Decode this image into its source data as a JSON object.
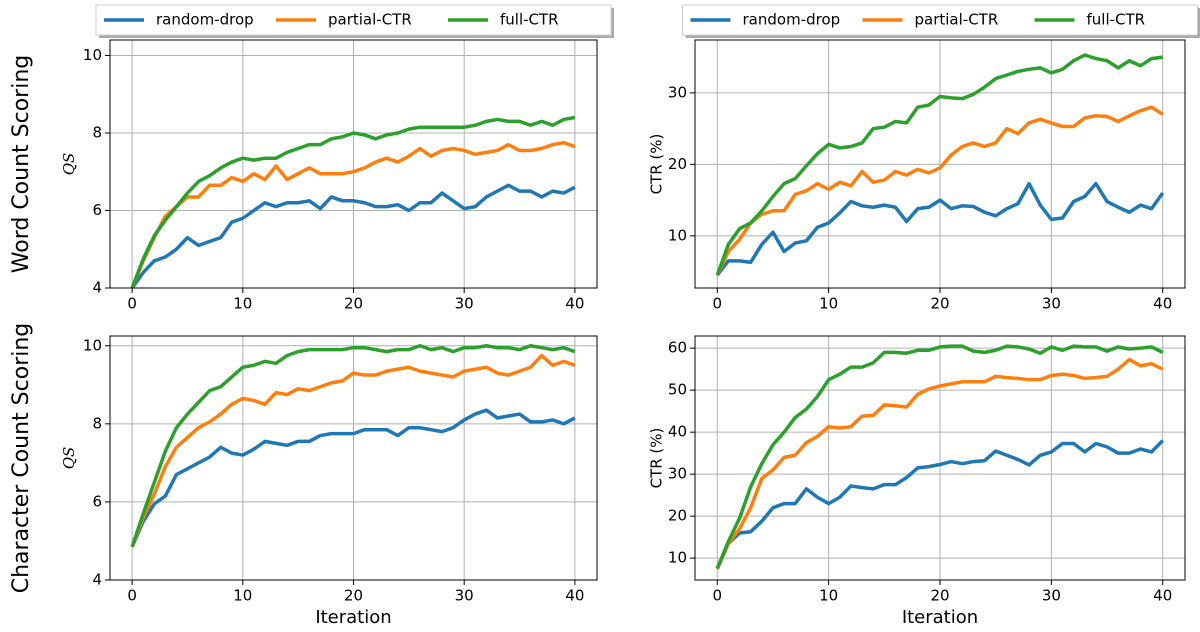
{
  "chart_data": [
    {
      "type": "line",
      "row_label": "Word Count Scoring",
      "ylabel": "QS",
      "legend": "top",
      "grid": true,
      "x": [
        0,
        1,
        2,
        3,
        4,
        5,
        6,
        7,
        8,
        9,
        10,
        11,
        12,
        13,
        14,
        15,
        16,
        17,
        18,
        19,
        20,
        21,
        22,
        23,
        24,
        25,
        26,
        27,
        28,
        29,
        30,
        31,
        32,
        33,
        34,
        35,
        36,
        37,
        38,
        39,
        40
      ],
      "xlim": [
        -2,
        42
      ],
      "xticks": [
        0,
        10,
        20,
        30,
        40
      ],
      "ylim": [
        4,
        10.4
      ],
      "yticks": [
        4,
        6,
        8,
        10
      ],
      "series": [
        {
          "name": "random-drop",
          "color": "#1f77b4",
          "values": [
            4.0,
            4.4,
            4.7,
            4.8,
            5.0,
            5.3,
            5.1,
            5.2,
            5.3,
            5.7,
            5.8,
            6.0,
            6.2,
            6.1,
            6.2,
            6.2,
            6.25,
            6.05,
            6.35,
            6.25,
            6.25,
            6.2,
            6.1,
            6.1,
            6.15,
            6.0,
            6.2,
            6.2,
            6.45,
            6.25,
            6.05,
            6.1,
            6.35,
            6.5,
            6.65,
            6.5,
            6.5,
            6.35,
            6.5,
            6.45,
            6.6
          ]
        },
        {
          "name": "partial-CTR",
          "color": "#ff7f0e",
          "values": [
            4.0,
            4.7,
            5.3,
            5.85,
            6.1,
            6.35,
            6.35,
            6.65,
            6.65,
            6.85,
            6.75,
            6.95,
            6.8,
            7.15,
            6.8,
            6.95,
            7.1,
            6.95,
            6.95,
            6.95,
            7.0,
            7.1,
            7.25,
            7.35,
            7.25,
            7.4,
            7.6,
            7.4,
            7.55,
            7.6,
            7.55,
            7.45,
            7.5,
            7.55,
            7.7,
            7.55,
            7.55,
            7.6,
            7.7,
            7.75,
            7.65
          ]
        },
        {
          "name": "full-CTR",
          "color": "#2ca02c",
          "values": [
            4.0,
            4.75,
            5.35,
            5.75,
            6.1,
            6.45,
            6.75,
            6.9,
            7.1,
            7.25,
            7.35,
            7.3,
            7.35,
            7.35,
            7.5,
            7.6,
            7.7,
            7.7,
            7.85,
            7.9,
            8.0,
            7.95,
            7.85,
            7.95,
            8.0,
            8.1,
            8.15,
            8.15,
            8.15,
            8.15,
            8.15,
            8.2,
            8.3,
            8.35,
            8.3,
            8.3,
            8.2,
            8.3,
            8.2,
            8.35,
            8.4
          ]
        }
      ]
    },
    {
      "type": "line",
      "ylabel": "CTR (%)",
      "legend": "top",
      "grid": true,
      "x": [
        0,
        1,
        2,
        3,
        4,
        5,
        6,
        7,
        8,
        9,
        10,
        11,
        12,
        13,
        14,
        15,
        16,
        17,
        18,
        19,
        20,
        21,
        22,
        23,
        24,
        25,
        26,
        27,
        28,
        29,
        30,
        31,
        32,
        33,
        34,
        35,
        36,
        37,
        38,
        39,
        40
      ],
      "xlim": [
        -2,
        42
      ],
      "xticks": [
        0,
        10,
        20,
        30,
        40
      ],
      "ylim": [
        2.7,
        37.4
      ],
      "yticks": [
        10,
        20,
        30
      ],
      "series": [
        {
          "name": "random-drop",
          "color": "#1f77b4",
          "values": [
            4.5,
            6.5,
            6.5,
            6.3,
            8.8,
            10.5,
            7.8,
            9.0,
            9.3,
            11.2,
            11.8,
            13.2,
            14.8,
            14.2,
            14.0,
            14.3,
            14.0,
            12.0,
            13.8,
            14.0,
            15.0,
            13.8,
            14.2,
            14.1,
            13.3,
            12.8,
            13.8,
            14.5,
            17.3,
            14.3,
            12.3,
            12.5,
            14.8,
            15.5,
            17.3,
            14.8,
            14.0,
            13.3,
            14.3,
            13.8,
            16.0
          ]
        },
        {
          "name": "partial-CTR",
          "color": "#ff7f0e",
          "values": [
            4.5,
            7.8,
            9.5,
            11.8,
            13.0,
            13.5,
            13.5,
            15.8,
            16.3,
            17.3,
            16.5,
            17.5,
            17.0,
            19.0,
            17.5,
            17.8,
            19.0,
            18.5,
            19.3,
            18.8,
            19.5,
            21.3,
            22.5,
            23.0,
            22.5,
            23.0,
            25.0,
            24.3,
            25.8,
            26.3,
            25.8,
            25.3,
            25.3,
            26.5,
            26.8,
            26.7,
            26.0,
            26.8,
            27.5,
            28.0,
            27.0
          ]
        },
        {
          "name": "full-CTR",
          "color": "#2ca02c",
          "values": [
            4.5,
            8.8,
            11.0,
            11.8,
            13.5,
            15.5,
            17.3,
            18.0,
            19.8,
            21.5,
            22.8,
            22.3,
            22.5,
            23.0,
            25.0,
            25.2,
            26.0,
            25.8,
            28.0,
            28.3,
            29.5,
            29.3,
            29.2,
            29.8,
            30.8,
            32.0,
            32.5,
            33.0,
            33.3,
            33.5,
            32.8,
            33.3,
            34.5,
            35.3,
            34.8,
            34.5,
            33.5,
            34.5,
            33.8,
            34.8,
            35.0
          ]
        }
      ]
    },
    {
      "type": "line",
      "row_label": "Character Count Scoring",
      "ylabel": "QS",
      "xlabel": "Iteration",
      "grid": true,
      "x": [
        0,
        1,
        2,
        3,
        4,
        5,
        6,
        7,
        8,
        9,
        10,
        11,
        12,
        13,
        14,
        15,
        16,
        17,
        18,
        19,
        20,
        21,
        22,
        23,
        24,
        25,
        26,
        27,
        28,
        29,
        30,
        31,
        32,
        33,
        34,
        35,
        36,
        37,
        38,
        39,
        40
      ],
      "xlim": [
        -2,
        42
      ],
      "xticks": [
        0,
        10,
        20,
        30,
        40
      ],
      "ylim": [
        4,
        10.25
      ],
      "yticks": [
        4,
        6,
        8,
        10
      ],
      "series": [
        {
          "name": "random-drop",
          "color": "#1f77b4",
          "values": [
            4.85,
            5.5,
            5.95,
            6.15,
            6.7,
            6.85,
            7.0,
            7.15,
            7.4,
            7.25,
            7.2,
            7.35,
            7.55,
            7.5,
            7.45,
            7.55,
            7.55,
            7.7,
            7.75,
            7.75,
            7.75,
            7.85,
            7.85,
            7.85,
            7.7,
            7.9,
            7.9,
            7.85,
            7.8,
            7.9,
            8.1,
            8.25,
            8.35,
            8.15,
            8.2,
            8.25,
            8.05,
            8.05,
            8.1,
            8.0,
            8.15
          ]
        },
        {
          "name": "partial-CTR",
          "color": "#ff7f0e",
          "values": [
            4.85,
            5.6,
            6.2,
            6.9,
            7.4,
            7.65,
            7.9,
            8.05,
            8.25,
            8.5,
            8.65,
            8.6,
            8.5,
            8.8,
            8.75,
            8.9,
            8.85,
            8.95,
            9.05,
            9.1,
            9.3,
            9.25,
            9.25,
            9.35,
            9.4,
            9.45,
            9.35,
            9.3,
            9.25,
            9.2,
            9.35,
            9.4,
            9.45,
            9.3,
            9.25,
            9.35,
            9.45,
            9.75,
            9.5,
            9.6,
            9.5
          ]
        },
        {
          "name": "full-CTR",
          "color": "#2ca02c",
          "values": [
            4.85,
            5.7,
            6.5,
            7.3,
            7.9,
            8.25,
            8.55,
            8.85,
            8.95,
            9.2,
            9.45,
            9.5,
            9.6,
            9.55,
            9.75,
            9.85,
            9.9,
            9.9,
            9.9,
            9.9,
            9.95,
            9.95,
            9.9,
            9.85,
            9.9,
            9.9,
            10.0,
            9.9,
            9.95,
            9.85,
            9.95,
            9.95,
            10.0,
            9.95,
            9.95,
            9.9,
            10.0,
            9.95,
            9.9,
            9.95,
            9.85
          ]
        }
      ]
    },
    {
      "type": "line",
      "ylabel": "CTR (%)",
      "xlabel": "Iteration",
      "grid": true,
      "x": [
        0,
        1,
        2,
        3,
        4,
        5,
        6,
        7,
        8,
        9,
        10,
        11,
        12,
        13,
        14,
        15,
        16,
        17,
        18,
        19,
        20,
        21,
        22,
        23,
        24,
        25,
        26,
        27,
        28,
        29,
        30,
        31,
        32,
        33,
        34,
        35,
        36,
        37,
        38,
        39,
        40
      ],
      "xlim": [
        -2,
        42
      ],
      "xticks": [
        0,
        10,
        20,
        30,
        40
      ],
      "ylim": [
        4.8,
        62.9
      ],
      "yticks": [
        10,
        20,
        30,
        40,
        50,
        60
      ],
      "series": [
        {
          "name": "random-drop",
          "color": "#1f77b4",
          "values": [
            7.5,
            13.5,
            16.0,
            16.3,
            18.8,
            22.0,
            23.0,
            23.0,
            26.5,
            24.5,
            23.0,
            24.5,
            27.2,
            26.8,
            26.5,
            27.5,
            27.5,
            29.2,
            31.5,
            31.8,
            32.3,
            33.0,
            32.5,
            33.0,
            33.2,
            35.5,
            34.5,
            33.5,
            32.2,
            34.5,
            35.3,
            37.3,
            37.3,
            35.3,
            37.3,
            36.5,
            35.0,
            35.0,
            36.0,
            35.3,
            38.0
          ]
        },
        {
          "name": "partial-CTR",
          "color": "#ff7f0e",
          "values": [
            7.5,
            13.5,
            17.0,
            22.0,
            29.0,
            31.0,
            34.0,
            34.5,
            37.5,
            39.0,
            41.3,
            41.0,
            41.3,
            43.8,
            44.0,
            46.5,
            46.3,
            46.0,
            49.0,
            50.3,
            51.0,
            51.5,
            52.0,
            52.0,
            52.0,
            53.3,
            53.0,
            52.8,
            52.5,
            52.5,
            53.5,
            53.8,
            53.5,
            52.8,
            53.0,
            53.3,
            55.0,
            57.3,
            55.8,
            56.3,
            55.0
          ]
        },
        {
          "name": "full-CTR",
          "color": "#2ca02c",
          "values": [
            7.5,
            14.0,
            19.5,
            27.0,
            32.5,
            37.0,
            40.0,
            43.5,
            45.5,
            48.5,
            52.5,
            53.8,
            55.5,
            55.5,
            56.5,
            59.0,
            59.0,
            58.8,
            59.5,
            59.5,
            60.3,
            60.5,
            60.5,
            59.3,
            59.0,
            59.5,
            60.5,
            60.3,
            59.8,
            58.8,
            60.3,
            59.5,
            60.5,
            60.3,
            60.3,
            59.3,
            60.3,
            59.8,
            60.0,
            60.3,
            59.0
          ]
        }
      ]
    }
  ]
}
